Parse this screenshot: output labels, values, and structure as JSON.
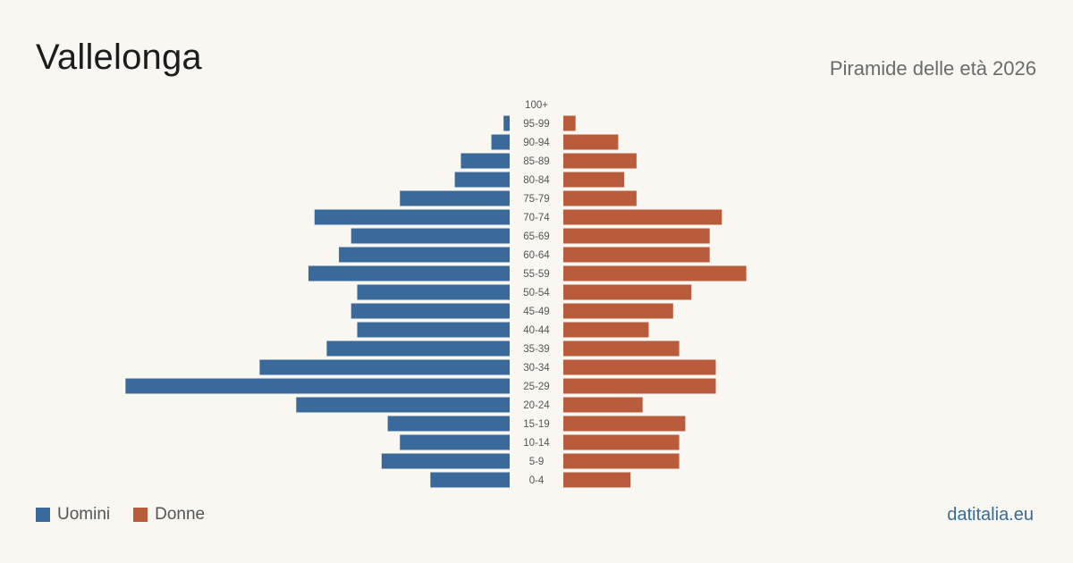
{
  "title": "Vallelonga",
  "subtitle": "Piramide delle età 2026",
  "source": "datitalia.eu",
  "colors": {
    "male": "#3a6a9b",
    "female": "#b85c3c",
    "source": "#3a6a9b"
  },
  "legend": {
    "male_label": "Uomini",
    "female_label": "Donne"
  },
  "chart_data": {
    "type": "bar",
    "orientation": "horizontal-pyramid",
    "categories": [
      "100+",
      "95-99",
      "90-94",
      "85-89",
      "80-84",
      "75-79",
      "70-74",
      "65-69",
      "60-64",
      "55-59",
      "50-54",
      "45-49",
      "40-44",
      "35-39",
      "30-34",
      "25-29",
      "20-24",
      "15-19",
      "10-14",
      "5-9",
      "0-4"
    ],
    "series": [
      {
        "name": "Uomini",
        "values": [
          0,
          1,
          3,
          8,
          9,
          18,
          32,
          26,
          28,
          33,
          25,
          26,
          25,
          30,
          41,
          63,
          35,
          20,
          18,
          21,
          13
        ]
      },
      {
        "name": "Donne",
        "values": [
          0,
          2,
          9,
          12,
          10,
          12,
          26,
          24,
          24,
          30,
          21,
          18,
          14,
          19,
          25,
          25,
          13,
          20,
          19,
          19,
          11
        ]
      }
    ]
  }
}
